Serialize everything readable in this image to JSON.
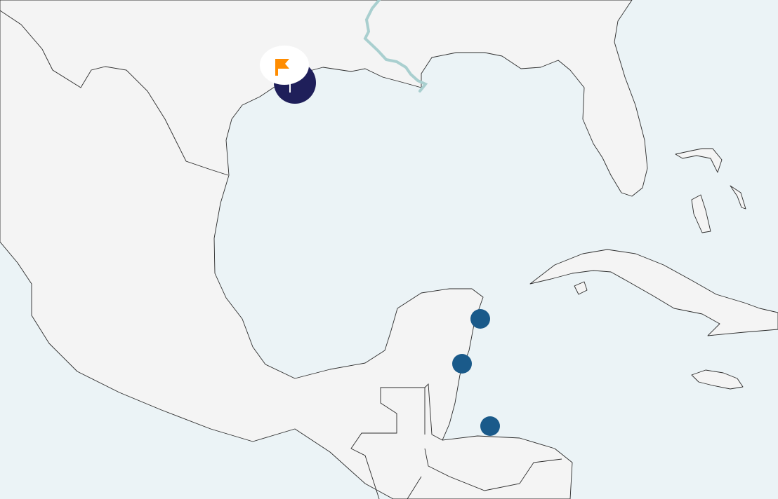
{
  "map": {
    "colors": {
      "sea": "#ebf3f6",
      "land": "#f4f4f4",
      "coastline": "#2b2b2b",
      "river": "#a9cfcf",
      "cluster_marker": "#1f1f5a",
      "point_marker": "#1a5a8a",
      "flag": "#ff8c00",
      "flag_badge": "#ffffff"
    },
    "markers": [
      {
        "type": "flag-cluster",
        "icon": "flag-icon"
      },
      {
        "type": "point"
      },
      {
        "type": "point"
      },
      {
        "type": "point"
      }
    ]
  }
}
